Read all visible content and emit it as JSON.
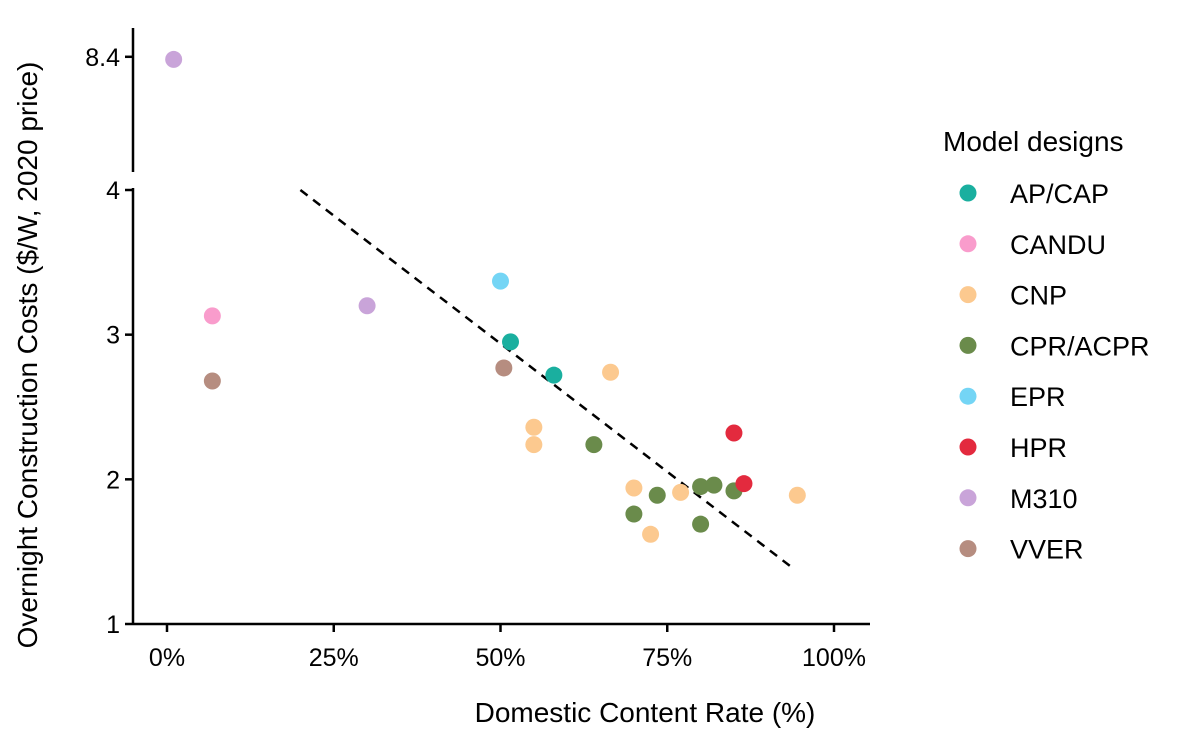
{
  "chart_data": {
    "type": "scatter",
    "xlabel": "Domestic Content Rate (%)",
    "ylabel": "Overnight Construction Costs ($/W, 2020 price)",
    "xlim": [
      -0.05,
      1.06
    ],
    "ylim": [
      1,
      4
    ],
    "upper_panel_ylim": [
      4,
      9.5
    ],
    "axis_break": true,
    "x_ticks": [
      {
        "value": 0,
        "label": "0%"
      },
      {
        "value": 0.25,
        "label": "25%"
      },
      {
        "value": 0.5,
        "label": "50%"
      },
      {
        "value": 0.75,
        "label": "75%"
      },
      {
        "value": 1.0,
        "label": "100%"
      }
    ],
    "y_ticks": [
      {
        "value": 1,
        "label": "1"
      },
      {
        "value": 2,
        "label": "2"
      },
      {
        "value": 3,
        "label": "3"
      },
      {
        "value": 4,
        "label": "4"
      }
    ],
    "upper_y_ticks": [
      {
        "value": 8.4,
        "label": "8.4"
      }
    ],
    "grid": false,
    "legend": {
      "title": "Model designs",
      "placement": "right"
    },
    "trend_line": {
      "style": "dashed",
      "color": "#000000",
      "points": [
        [
          0.2,
          4.0
        ],
        [
          0.94,
          1.38
        ]
      ]
    },
    "series": [
      {
        "name": "AP/CAP",
        "color": "#1aaf9f",
        "points": [
          [
            0.515,
            2.95
          ],
          [
            0.58,
            2.72
          ]
        ]
      },
      {
        "name": "CANDU",
        "color": "#f99ccc",
        "points": [
          [
            0.068,
            3.13
          ]
        ]
      },
      {
        "name": "CNP",
        "color": "#fcc98f",
        "points": [
          [
            0.55,
            2.36
          ],
          [
            0.55,
            2.24
          ],
          [
            0.665,
            2.74
          ],
          [
            0.7,
            1.94
          ],
          [
            0.725,
            1.62
          ],
          [
            0.77,
            1.91
          ],
          [
            0.945,
            1.89
          ]
        ]
      },
      {
        "name": "CPR/ACPR",
        "color": "#6a8b4b",
        "points": [
          [
            0.64,
            2.24
          ],
          [
            0.7,
            1.76
          ],
          [
            0.735,
            1.89
          ],
          [
            0.8,
            1.95
          ],
          [
            0.82,
            1.96
          ],
          [
            0.85,
            1.92
          ],
          [
            0.8,
            1.69
          ]
        ]
      },
      {
        "name": "EPR",
        "color": "#74d5f5",
        "points": [
          [
            0.5,
            3.37
          ]
        ]
      },
      {
        "name": "HPR",
        "color": "#e32a3e",
        "points": [
          [
            0.85,
            2.32
          ],
          [
            0.865,
            1.97
          ]
        ]
      },
      {
        "name": "M310",
        "color": "#c9a4d9",
        "points": [
          [
            0.01,
            8.3
          ],
          [
            0.3,
            3.2
          ]
        ]
      },
      {
        "name": "VVER",
        "color": "#b68d80",
        "points": [
          [
            0.068,
            2.68
          ],
          [
            0.505,
            2.77
          ]
        ]
      }
    ]
  }
}
